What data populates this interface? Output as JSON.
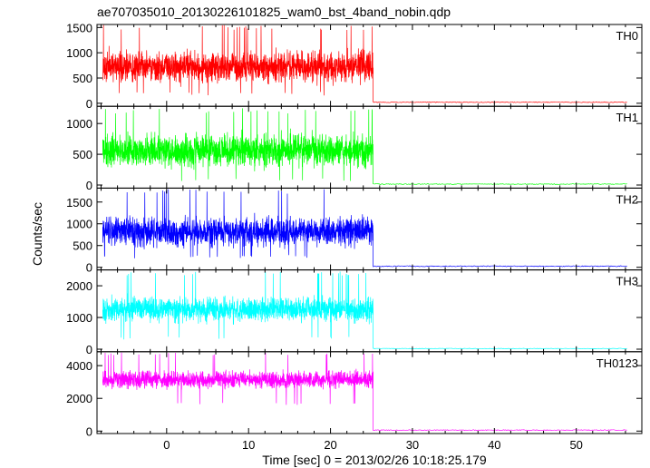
{
  "figure": {
    "title": "ae707035010_20130226101825_wam0_bst_4band_nobin.qdp",
    "xlabel": "Time [sec] 0 = 2013/02/26 10:18:25.179",
    "ylabel": "Counts/sec"
  },
  "chart_data": [
    {
      "type": "line",
      "panel_label": "TH0",
      "color": "#ff0000",
      "xlim": [
        -8.5,
        58.0
      ],
      "ylim": [
        -60,
        1560
      ],
      "x_ticks": [
        0,
        10,
        20,
        30,
        40,
        50
      ],
      "y_ticks": [
        0,
        500,
        1000,
        1500
      ],
      "x_tick_labels": [],
      "y_tick_labels": [
        "0",
        "500",
        "1000",
        "1500"
      ],
      "series": [
        {
          "segments": [
            {
              "x_start": -7.8,
              "x_end": 25.2,
              "mean": 720,
              "spread": 250,
              "max": 1550,
              "min": 150
            },
            {
              "x_start": 25.2,
              "x_end": 56.2,
              "level": 20
            }
          ]
        }
      ]
    },
    {
      "type": "line",
      "panel_label": "TH1",
      "color": "#00ff00",
      "xlim": [
        -8.5,
        58.0
      ],
      "ylim": [
        -50,
        1280
      ],
      "x_ticks": [
        0,
        10,
        20,
        30,
        40,
        50
      ],
      "y_ticks": [
        0,
        500,
        1000
      ],
      "x_tick_labels": [],
      "y_tick_labels": [
        "0",
        "500",
        "1000"
      ],
      "series": [
        {
          "segments": [
            {
              "x_start": -7.8,
              "x_end": 25.2,
              "mean": 560,
              "spread": 220,
              "max": 1250,
              "min": 50
            },
            {
              "x_start": 25.2,
              "x_end": 56.2,
              "level": 15
            }
          ]
        }
      ]
    },
    {
      "type": "line",
      "panel_label": "TH2",
      "color": "#0000ff",
      "xlim": [
        -8.5,
        58.0
      ],
      "ylim": [
        -60,
        1820
      ],
      "x_ticks": [
        0,
        10,
        20,
        30,
        40,
        50
      ],
      "y_ticks": [
        0,
        500,
        1000,
        1500
      ],
      "x_tick_labels": [],
      "y_tick_labels": [
        "0",
        "500",
        "1000",
        "1500"
      ],
      "series": [
        {
          "segments": [
            {
              "x_start": -7.8,
              "x_end": 25.2,
              "mean": 820,
              "spread": 270,
              "max": 1800,
              "min": 200
            },
            {
              "x_start": 25.2,
              "x_end": 56.2,
              "level": 25
            }
          ]
        }
      ]
    },
    {
      "type": "line",
      "panel_label": "TH3",
      "color": "#00ffff",
      "xlim": [
        -8.5,
        58.0
      ],
      "ylim": [
        -80,
        2500
      ],
      "x_ticks": [
        0,
        10,
        20,
        30,
        40,
        50
      ],
      "y_ticks": [
        0,
        1000,
        2000
      ],
      "x_tick_labels": [],
      "y_tick_labels": [
        "0",
        "1000",
        "2000"
      ],
      "series": [
        {
          "segments": [
            {
              "x_start": -7.8,
              "x_end": 25.2,
              "mean": 1250,
              "spread": 320,
              "max": 2450,
              "min": 300
            },
            {
              "x_start": 25.2,
              "x_end": 56.2,
              "level": 20
            }
          ]
        }
      ]
    },
    {
      "type": "line",
      "panel_label": "TH0123",
      "color": "#ff00ff",
      "xlim": [
        -8.5,
        58.0
      ],
      "ylim": [
        -150,
        4850
      ],
      "x_ticks": [
        0,
        10,
        20,
        30,
        40,
        50
      ],
      "y_ticks": [
        0,
        2000,
        4000
      ],
      "x_tick_labels": [
        "0",
        "10",
        "20",
        "30",
        "40",
        "50"
      ],
      "y_tick_labels": [
        "0",
        "2000",
        "4000"
      ],
      "series": [
        {
          "segments": [
            {
              "x_start": -7.8,
              "x_end": 25.2,
              "mean": 3150,
              "spread": 420,
              "max": 4800,
              "min": 1600
            },
            {
              "x_start": 25.2,
              "x_end": 56.2,
              "level": 60
            }
          ]
        }
      ]
    }
  ]
}
